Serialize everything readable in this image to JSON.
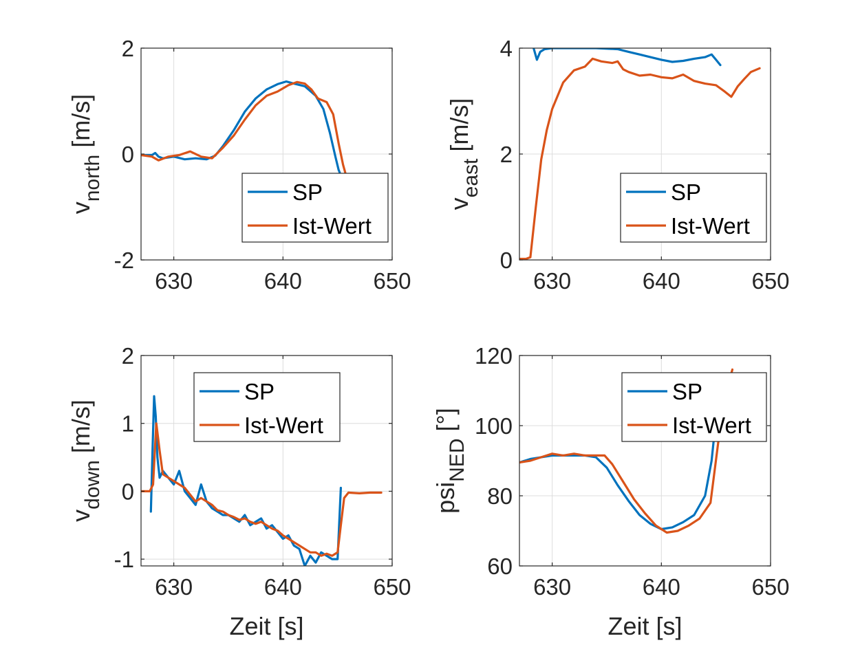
{
  "colors": {
    "sp": "#0072BD",
    "ist": "#D95319"
  },
  "chart_data": [
    {
      "type": "line",
      "ylabel_main": "v",
      "ylabel_sub": "north",
      "ylabel_unit": " [m/s]",
      "xlabel": "",
      "xlim": [
        627,
        650
      ],
      "ylim": [
        -2,
        2
      ],
      "xticks": [
        "630",
        "640",
        "650"
      ],
      "yticks": [
        "-2",
        "0",
        "2"
      ],
      "xtick_values": [
        630,
        640,
        650
      ],
      "ytick_values": [
        -2,
        0,
        2
      ],
      "grid": true,
      "legend": "bottom-right",
      "series": [
        {
          "name": "SP",
          "x": [
            627,
            628,
            628.3,
            628.6,
            629,
            630,
            631,
            632,
            633,
            633.8,
            634.5,
            635.5,
            636.5,
            637.5,
            638.5,
            639.5,
            640.3,
            641,
            642,
            643,
            643.7,
            644.3,
            644.8,
            645.1,
            645.2
          ],
          "y": [
            -0.02,
            -0.02,
            0.02,
            -0.05,
            -0.08,
            -0.05,
            -0.1,
            -0.08,
            -0.1,
            -0.03,
            0.15,
            0.45,
            0.8,
            1.05,
            1.22,
            1.32,
            1.37,
            1.33,
            1.28,
            1.1,
            0.85,
            0.4,
            -0.05,
            -0.3,
            -0.35
          ]
        },
        {
          "name": "Ist-Wert",
          "x": [
            627,
            628,
            628.6,
            629.5,
            630.5,
            631.5,
            632.5,
            633.5,
            634.5,
            635.5,
            636.5,
            637.5,
            638.5,
            639.5,
            640.5,
            641.3,
            642,
            642.6,
            643.2,
            644,
            644.6,
            645.1,
            645.5,
            645.7
          ],
          "y": [
            -0.02,
            -0.05,
            -0.12,
            -0.05,
            -0.02,
            0.05,
            -0.05,
            -0.08,
            0.12,
            0.35,
            0.65,
            0.92,
            1.1,
            1.18,
            1.3,
            1.36,
            1.33,
            1.22,
            1.05,
            0.98,
            0.75,
            0.2,
            -0.2,
            -0.35
          ]
        }
      ]
    },
    {
      "type": "line",
      "ylabel_main": "v",
      "ylabel_sub": "east",
      "ylabel_unit": " [m/s]",
      "xlabel": "",
      "xlim": [
        627,
        650
      ],
      "ylim": [
        0,
        4
      ],
      "xticks": [
        "630",
        "640",
        "650"
      ],
      "yticks": [
        "0",
        "2",
        "4"
      ],
      "xtick_values": [
        630,
        640,
        650
      ],
      "ytick_values": [
        0,
        2,
        4
      ],
      "grid": true,
      "legend": "bottom-right",
      "series": [
        {
          "name": "SP",
          "x": [
            628.3,
            628.6,
            628.9,
            629.3,
            630,
            632,
            634,
            636,
            637,
            638,
            639,
            640,
            641,
            642,
            643,
            644,
            644.6,
            645,
            645.4
          ],
          "y": [
            4.0,
            3.78,
            3.93,
            3.98,
            4.0,
            4.0,
            4.0,
            3.98,
            3.93,
            3.88,
            3.83,
            3.78,
            3.74,
            3.76,
            3.8,
            3.83,
            3.88,
            3.78,
            3.68
          ]
        },
        {
          "name": "Ist-Wert",
          "x": [
            627,
            627.6,
            628,
            628.5,
            629,
            629.5,
            630,
            631,
            632,
            633,
            633.7,
            634.5,
            635.5,
            636,
            636.5,
            637,
            638,
            639,
            640,
            641,
            642,
            643,
            644,
            645,
            645.8,
            646.4,
            647,
            647.6,
            648.2,
            649
          ],
          "y": [
            0.02,
            0.02,
            0.05,
            1.0,
            1.9,
            2.45,
            2.85,
            3.35,
            3.58,
            3.65,
            3.8,
            3.75,
            3.72,
            3.75,
            3.6,
            3.55,
            3.48,
            3.5,
            3.45,
            3.43,
            3.5,
            3.38,
            3.33,
            3.3,
            3.18,
            3.08,
            3.28,
            3.42,
            3.55,
            3.62
          ]
        }
      ]
    },
    {
      "type": "line",
      "ylabel_main": "v",
      "ylabel_sub": "down",
      "ylabel_unit": " [m/s]",
      "xlabel": "Zeit [s]",
      "xlim": [
        627,
        650
      ],
      "ylim": [
        -1.1,
        2
      ],
      "xticks": [
        "630",
        "640",
        "650"
      ],
      "yticks": [
        "-1",
        "0",
        "1",
        "2"
      ],
      "xtick_values": [
        630,
        640,
        650
      ],
      "ytick_values": [
        -1,
        0,
        1,
        2
      ],
      "grid": true,
      "legend": "top-right",
      "series": [
        {
          "name": "SP",
          "x": [
            627.9,
            628.05,
            628.2,
            628.35,
            628.5,
            628.7,
            629,
            629.5,
            630,
            630.5,
            631,
            631.5,
            632,
            632.5,
            633,
            633.5,
            634,
            634.5,
            635,
            635.5,
            636,
            636.5,
            637,
            637.5,
            638,
            638.5,
            639,
            639.5,
            640,
            640.5,
            641,
            641.5,
            642,
            642.5,
            643,
            643.5,
            644,
            644.5,
            645,
            645.3
          ],
          "y": [
            -0.3,
            0.6,
            1.4,
            1.1,
            0.5,
            0.2,
            0.3,
            0.2,
            0.1,
            0.3,
            0.0,
            -0.1,
            -0.2,
            0.1,
            -0.15,
            -0.25,
            -0.3,
            -0.35,
            -0.35,
            -0.4,
            -0.45,
            -0.35,
            -0.5,
            -0.45,
            -0.4,
            -0.55,
            -0.5,
            -0.6,
            -0.7,
            -0.65,
            -0.8,
            -0.85,
            -1.1,
            -0.95,
            -1.05,
            -0.9,
            -0.95,
            -1.0,
            -1.0,
            0.05
          ]
        },
        {
          "name": "Ist-Wert",
          "x": [
            627,
            627.8,
            628.1,
            628.4,
            628.7,
            629,
            629.5,
            630,
            630.5,
            631,
            631.5,
            632,
            632.5,
            633,
            633.5,
            634,
            634.5,
            635,
            635.5,
            636,
            636.5,
            637,
            637.5,
            638,
            638.5,
            639,
            639.5,
            640,
            640.5,
            641,
            641.5,
            642,
            642.5,
            643,
            643.5,
            644,
            644.5,
            645,
            645.3,
            645.6,
            646,
            647,
            648,
            649
          ],
          "y": [
            0.0,
            0.0,
            0.1,
            1.0,
            0.6,
            0.25,
            0.2,
            0.15,
            0.1,
            0.05,
            -0.05,
            -0.15,
            -0.1,
            -0.15,
            -0.2,
            -0.28,
            -0.3,
            -0.35,
            -0.38,
            -0.42,
            -0.4,
            -0.45,
            -0.48,
            -0.45,
            -0.5,
            -0.55,
            -0.58,
            -0.65,
            -0.7,
            -0.75,
            -0.8,
            -0.85,
            -0.9,
            -0.9,
            -0.95,
            -0.92,
            -0.95,
            -0.9,
            -0.5,
            -0.1,
            -0.02,
            -0.03,
            -0.02,
            -0.02
          ]
        }
      ]
    },
    {
      "type": "line",
      "ylabel_main": "psi",
      "ylabel_sub": "NED",
      "ylabel_unit": " [°]",
      "xlabel": "Zeit [s]",
      "xlim": [
        627,
        650
      ],
      "ylim": [
        60,
        120
      ],
      "xticks": [
        "630",
        "640",
        "650"
      ],
      "yticks": [
        "60",
        "80",
        "100",
        "120"
      ],
      "xtick_values": [
        630,
        640,
        650
      ],
      "ytick_values": [
        60,
        80,
        100,
        120
      ],
      "grid": true,
      "legend": "top-right",
      "series": [
        {
          "name": "SP",
          "x": [
            627,
            628,
            629,
            630,
            631,
            632,
            633,
            634,
            635,
            636,
            637,
            638,
            639,
            640,
            641,
            642,
            643,
            644,
            644.6,
            645.2
          ],
          "y": [
            89.5,
            90.5,
            91,
            91.5,
            91.5,
            91.5,
            91.5,
            91,
            88,
            83,
            78.5,
            74.5,
            72,
            70.5,
            71,
            72.5,
            74.5,
            80,
            90,
            108
          ]
        },
        {
          "name": "Ist-Wert",
          "x": [
            627,
            628,
            629,
            630,
            631,
            632,
            633,
            634,
            634.8,
            635.5,
            636.5,
            637.5,
            638.5,
            639.5,
            640.5,
            641.5,
            642.5,
            643.5,
            644.5,
            645.2,
            645.8,
            646.5
          ],
          "y": [
            89.5,
            90,
            91,
            92,
            91.5,
            92,
            91.5,
            91.5,
            91.5,
            89,
            84,
            79,
            75,
            71.5,
            69.5,
            70,
            71.5,
            73.5,
            78,
            95,
            108,
            116
          ]
        }
      ]
    }
  ]
}
